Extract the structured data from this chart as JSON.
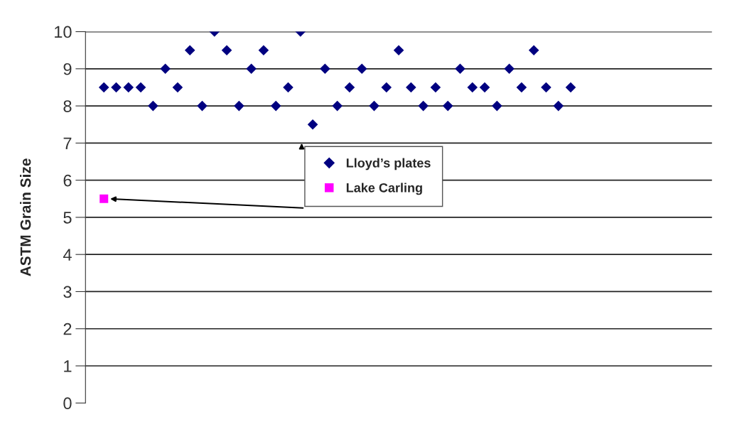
{
  "chart_data": {
    "type": "scatter",
    "ylabel": "ASTM Grain Size",
    "categories": [
      null,
      null,
      null,
      null,
      null,
      null,
      null,
      null,
      null,
      null,
      null,
      null,
      null,
      null,
      null,
      null,
      null,
      null,
      null,
      null,
      null,
      null,
      null,
      null,
      null,
      null,
      null,
      null,
      null,
      null,
      null,
      null,
      null,
      null,
      null,
      null,
      null,
      null,
      null,
      null,
      null,
      null,
      null,
      null,
      null,
      null,
      null,
      null,
      null,
      null,
      null
    ],
    "series": [
      {
        "name": "Lloyd’s plates",
        "color": "#000080",
        "marker": "diamond",
        "values": [
          null,
          8.5,
          8.5,
          8.5,
          8.5,
          8,
          9,
          8.5,
          9.5,
          8,
          10,
          9.5,
          8,
          9,
          9.5,
          8,
          8.5,
          10,
          7.5,
          9,
          8,
          8.5,
          9,
          8,
          8.5,
          9.5,
          8.5,
          8,
          8.5,
          8,
          9,
          8.5,
          8.5,
          8,
          9,
          8.5,
          9.5,
          8.5,
          8,
          8.5,
          null,
          null,
          null,
          null,
          null,
          null,
          null,
          null,
          null,
          null,
          null
        ]
      },
      {
        "name": "Lake Carling",
        "color": "#ff00ff",
        "marker": "square",
        "values": [
          null,
          5.5,
          null,
          null,
          null,
          null,
          null,
          null,
          null,
          null,
          null,
          null,
          null,
          null,
          null,
          null,
          null,
          null,
          null,
          null,
          null,
          null,
          null,
          null,
          null,
          null,
          null,
          null,
          null,
          null,
          null,
          null,
          null,
          null,
          null,
          null,
          null,
          null,
          null,
          null,
          null,
          null,
          null,
          null,
          null,
          null,
          null,
          null,
          null,
          null,
          null
        ]
      }
    ],
    "ylim": [
      0,
      10
    ],
    "yticks": [
      0,
      1,
      2,
      3,
      4,
      5,
      6,
      7,
      8,
      9,
      10
    ],
    "grid": "y",
    "legend": "center",
    "tick_labels": "y"
  }
}
